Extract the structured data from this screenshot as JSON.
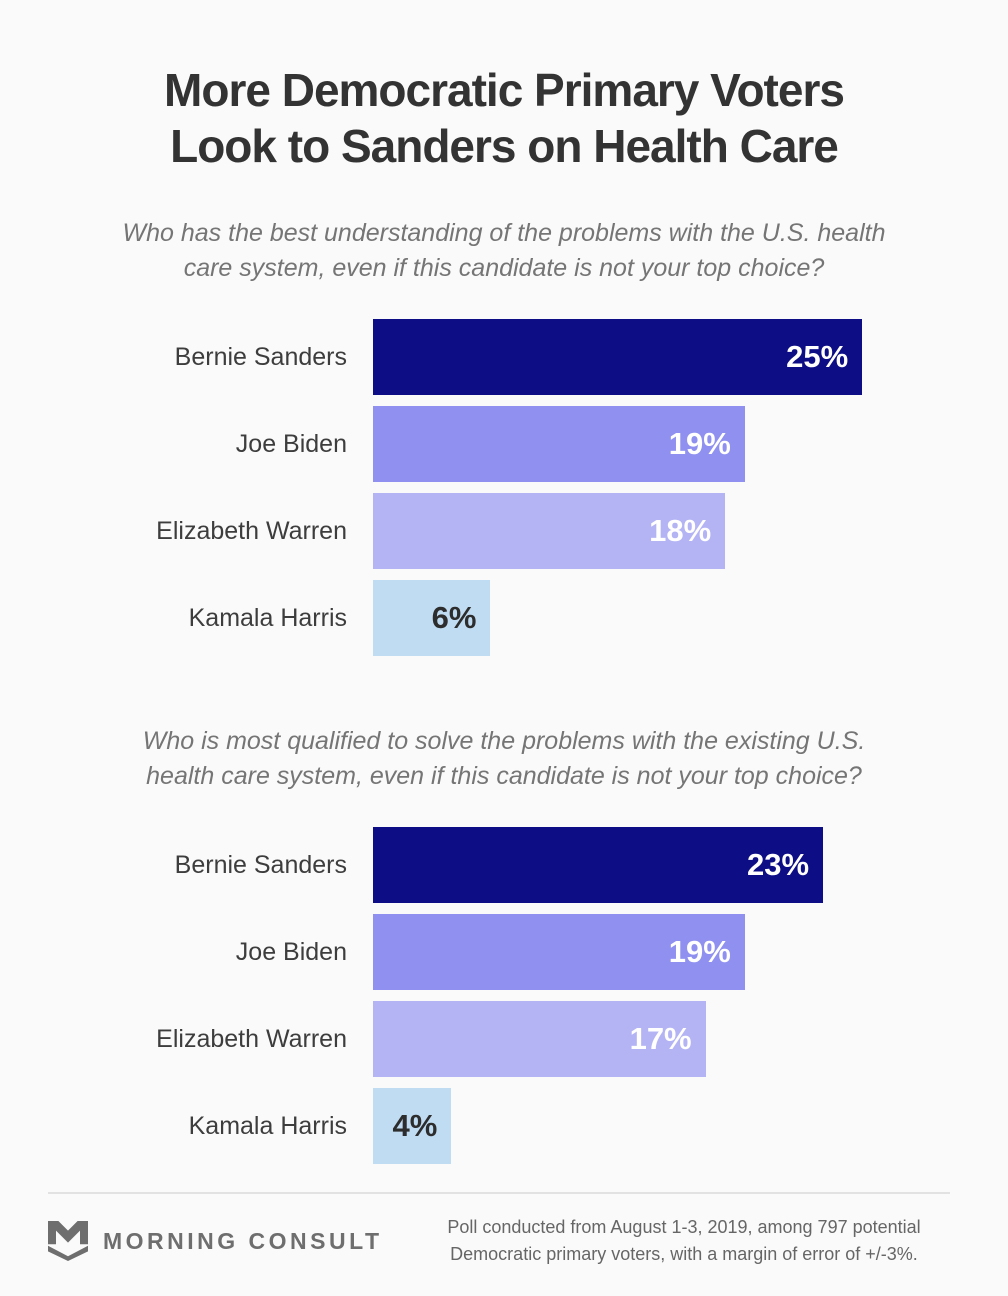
{
  "title": {
    "line1": "More Democratic Primary Voters",
    "line2": "Look to Sanders on Health Care"
  },
  "colors": {
    "background": "#fafafa",
    "title_text": "#333333",
    "category_label_text": "#3d3d3d",
    "question_text": "#757575",
    "navy": "#0d0d85",
    "periwinkle": "#8f90f0",
    "lavender": "#b4b4f5",
    "light_blue": "#c0dcf2",
    "value_label_light": "#ffffff",
    "value_label_dark": "#2d2d2d",
    "divider": "#e2e2e2",
    "logo_gray": "#6e6e6e",
    "footer_text": "#666666"
  },
  "chart_data": [
    {
      "type": "bar",
      "orientation": "horizontal",
      "question": "Who has the best understanding of the problems with the U.S. health care system, even if this candidate is not your top choice?",
      "question_lines": [
        "Who has the best understanding of the problems with the U.S. health",
        "care system, even if this candidate is not your top choice?"
      ],
      "categories": [
        "Bernie Sanders",
        "Joe Biden",
        "Elizabeth Warren",
        "Kamala Harris"
      ],
      "values": [
        25,
        19,
        18,
        6
      ],
      "value_labels": [
        "25%",
        "19%",
        "18%",
        "6%"
      ],
      "bar_colors": [
        "#0d0d85",
        "#8f90f0",
        "#b4b4f5",
        "#c0dcf2"
      ],
      "value_label_colors": [
        "#ffffff",
        "#ffffff",
        "#ffffff",
        "#2d2d2d"
      ],
      "xlim": [
        0,
        30
      ],
      "grid": false,
      "legend": "none",
      "value_label_position": "inside-end"
    },
    {
      "type": "bar",
      "orientation": "horizontal",
      "question": "Who is most qualified to solve the problems with the existing U.S. health care system, even if this candidate is not your top choice?",
      "question_lines": [
        "Who is most qualified to solve the problems with the existing U.S.",
        "health care system, even if this candidate is not your top choice?"
      ],
      "categories": [
        "Bernie Sanders",
        "Joe Biden",
        "Elizabeth Warren",
        "Kamala Harris"
      ],
      "values": [
        23,
        19,
        17,
        4
      ],
      "value_labels": [
        "23%",
        "19%",
        "17%",
        "4%"
      ],
      "bar_colors": [
        "#0d0d85",
        "#8f90f0",
        "#b4b4f5",
        "#c0dcf2"
      ],
      "value_label_colors": [
        "#ffffff",
        "#ffffff",
        "#ffffff",
        "#2d2d2d"
      ],
      "xlim": [
        0,
        30
      ],
      "grid": false,
      "legend": "none",
      "value_label_position": "inside-end"
    }
  ],
  "footer": {
    "logo_text": "MORNING CONSULT",
    "note_line1": "Poll conducted from August 1-3, 2019, among 797 potential",
    "note_line2": "Democratic primary voters, with a margin of error of +/-3%."
  }
}
